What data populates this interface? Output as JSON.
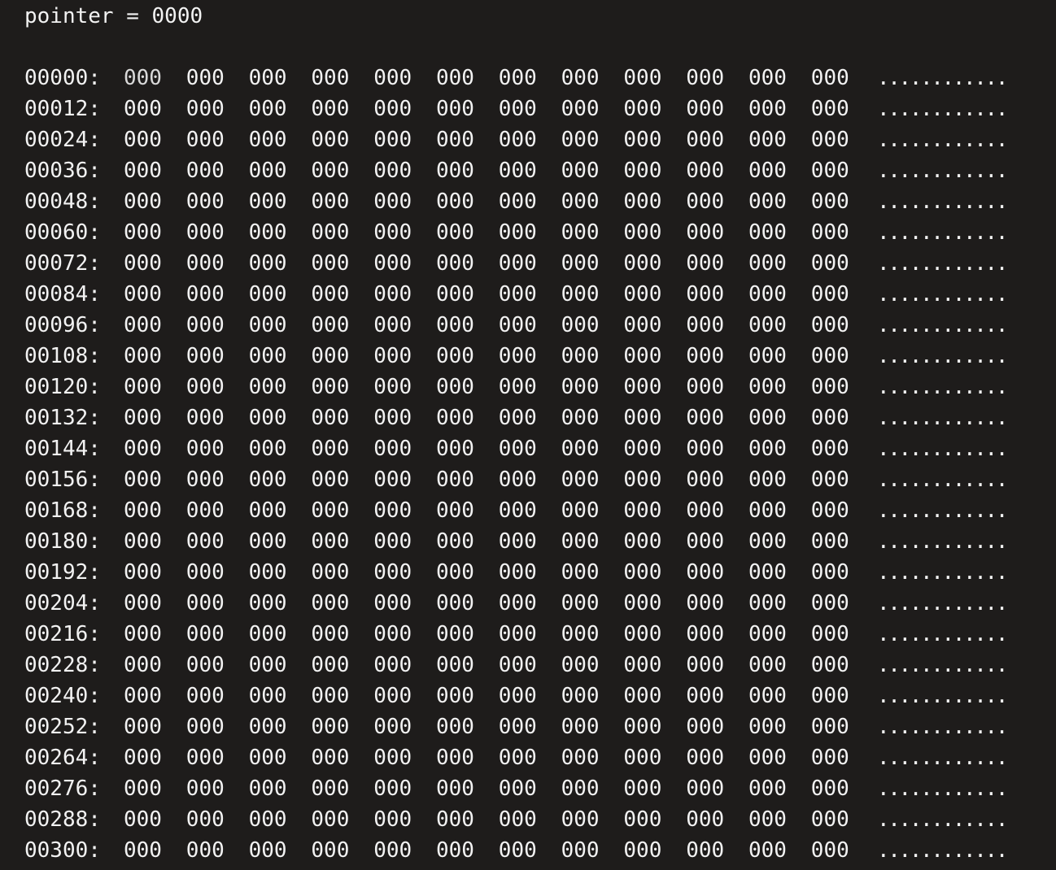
{
  "pointer_label": "pointer = 0000",
  "memory": {
    "rows": [
      {
        "address": "00000:",
        "bytes": [
          "000",
          "000",
          "000",
          "000",
          "000",
          "000",
          "000",
          "000",
          "000",
          "000",
          "000",
          "000"
        ],
        "ascii": "............"
      },
      {
        "address": "00012:",
        "bytes": [
          "000",
          "000",
          "000",
          "000",
          "000",
          "000",
          "000",
          "000",
          "000",
          "000",
          "000",
          "000"
        ],
        "ascii": "............"
      },
      {
        "address": "00024:",
        "bytes": [
          "000",
          "000",
          "000",
          "000",
          "000",
          "000",
          "000",
          "000",
          "000",
          "000",
          "000",
          "000"
        ],
        "ascii": "............"
      },
      {
        "address": "00036:",
        "bytes": [
          "000",
          "000",
          "000",
          "000",
          "000",
          "000",
          "000",
          "000",
          "000",
          "000",
          "000",
          "000"
        ],
        "ascii": "............"
      },
      {
        "address": "00048:",
        "bytes": [
          "000",
          "000",
          "000",
          "000",
          "000",
          "000",
          "000",
          "000",
          "000",
          "000",
          "000",
          "000"
        ],
        "ascii": "............"
      },
      {
        "address": "00060:",
        "bytes": [
          "000",
          "000",
          "000",
          "000",
          "000",
          "000",
          "000",
          "000",
          "000",
          "000",
          "000",
          "000"
        ],
        "ascii": "............"
      },
      {
        "address": "00072:",
        "bytes": [
          "000",
          "000",
          "000",
          "000",
          "000",
          "000",
          "000",
          "000",
          "000",
          "000",
          "000",
          "000"
        ],
        "ascii": "............"
      },
      {
        "address": "00084:",
        "bytes": [
          "000",
          "000",
          "000",
          "000",
          "000",
          "000",
          "000",
          "000",
          "000",
          "000",
          "000",
          "000"
        ],
        "ascii": "............"
      },
      {
        "address": "00096:",
        "bytes": [
          "000",
          "000",
          "000",
          "000",
          "000",
          "000",
          "000",
          "000",
          "000",
          "000",
          "000",
          "000"
        ],
        "ascii": "............"
      },
      {
        "address": "00108:",
        "bytes": [
          "000",
          "000",
          "000",
          "000",
          "000",
          "000",
          "000",
          "000",
          "000",
          "000",
          "000",
          "000"
        ],
        "ascii": "............"
      },
      {
        "address": "00120:",
        "bytes": [
          "000",
          "000",
          "000",
          "000",
          "000",
          "000",
          "000",
          "000",
          "000",
          "000",
          "000",
          "000"
        ],
        "ascii": "............"
      },
      {
        "address": "00132:",
        "bytes": [
          "000",
          "000",
          "000",
          "000",
          "000",
          "000",
          "000",
          "000",
          "000",
          "000",
          "000",
          "000"
        ],
        "ascii": "............"
      },
      {
        "address": "00144:",
        "bytes": [
          "000",
          "000",
          "000",
          "000",
          "000",
          "000",
          "000",
          "000",
          "000",
          "000",
          "000",
          "000"
        ],
        "ascii": "............"
      },
      {
        "address": "00156:",
        "bytes": [
          "000",
          "000",
          "000",
          "000",
          "000",
          "000",
          "000",
          "000",
          "000",
          "000",
          "000",
          "000"
        ],
        "ascii": "............"
      },
      {
        "address": "00168:",
        "bytes": [
          "000",
          "000",
          "000",
          "000",
          "000",
          "000",
          "000",
          "000",
          "000",
          "000",
          "000",
          "000"
        ],
        "ascii": "............"
      },
      {
        "address": "00180:",
        "bytes": [
          "000",
          "000",
          "000",
          "000",
          "000",
          "000",
          "000",
          "000",
          "000",
          "000",
          "000",
          "000"
        ],
        "ascii": "............"
      },
      {
        "address": "00192:",
        "bytes": [
          "000",
          "000",
          "000",
          "000",
          "000",
          "000",
          "000",
          "000",
          "000",
          "000",
          "000",
          "000"
        ],
        "ascii": "............"
      },
      {
        "address": "00204:",
        "bytes": [
          "000",
          "000",
          "000",
          "000",
          "000",
          "000",
          "000",
          "000",
          "000",
          "000",
          "000",
          "000"
        ],
        "ascii": "............"
      },
      {
        "address": "00216:",
        "bytes": [
          "000",
          "000",
          "000",
          "000",
          "000",
          "000",
          "000",
          "000",
          "000",
          "000",
          "000",
          "000"
        ],
        "ascii": "............"
      },
      {
        "address": "00228:",
        "bytes": [
          "000",
          "000",
          "000",
          "000",
          "000",
          "000",
          "000",
          "000",
          "000",
          "000",
          "000",
          "000"
        ],
        "ascii": "............"
      },
      {
        "address": "00240:",
        "bytes": [
          "000",
          "000",
          "000",
          "000",
          "000",
          "000",
          "000",
          "000",
          "000",
          "000",
          "000",
          "000"
        ],
        "ascii": "............"
      },
      {
        "address": "00252:",
        "bytes": [
          "000",
          "000",
          "000",
          "000",
          "000",
          "000",
          "000",
          "000",
          "000",
          "000",
          "000",
          "000"
        ],
        "ascii": "............"
      },
      {
        "address": "00264:",
        "bytes": [
          "000",
          "000",
          "000",
          "000",
          "000",
          "000",
          "000",
          "000",
          "000",
          "000",
          "000",
          "000"
        ],
        "ascii": "............"
      },
      {
        "address": "00276:",
        "bytes": [
          "000",
          "000",
          "000",
          "000",
          "000",
          "000",
          "000",
          "000",
          "000",
          "000",
          "000",
          "000"
        ],
        "ascii": "............"
      },
      {
        "address": "00288:",
        "bytes": [
          "000",
          "000",
          "000",
          "000",
          "000",
          "000",
          "000",
          "000",
          "000",
          "000",
          "000",
          "000"
        ],
        "ascii": "............"
      },
      {
        "address": "00300:",
        "bytes": [
          "000",
          "000",
          "000",
          "000",
          "000",
          "000",
          "000",
          "000",
          "000",
          "000",
          "000",
          "000"
        ],
        "ascii": "............"
      }
    ]
  }
}
